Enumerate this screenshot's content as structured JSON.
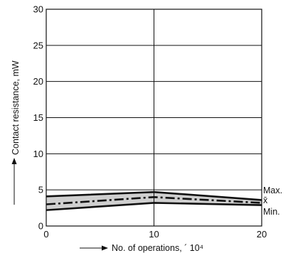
{
  "chart_data": {
    "type": "line",
    "title": "",
    "xlabel": "No. of operations, ´ 10⁴",
    "ylabel": "Contact resistance, mW",
    "xlim": [
      0,
      20
    ],
    "ylim": [
      0,
      30
    ],
    "xticks": [
      "0",
      "10",
      "20"
    ],
    "yticks": [
      "0",
      "5",
      "10",
      "15",
      "20",
      "25",
      "30"
    ],
    "grid": true,
    "x": [
      0,
      10,
      20
    ],
    "series": [
      {
        "name": "Max.",
        "values": [
          4.1,
          4.7,
          3.6
        ],
        "color": "#111111"
      },
      {
        "name": "x̄",
        "values": [
          3.0,
          4.0,
          3.2
        ],
        "color": "#111111"
      },
      {
        "name": "Min.",
        "values": [
          2.2,
          3.2,
          2.9
        ],
        "color": "#111111"
      }
    ],
    "band_fill": "#cfcfcf"
  }
}
